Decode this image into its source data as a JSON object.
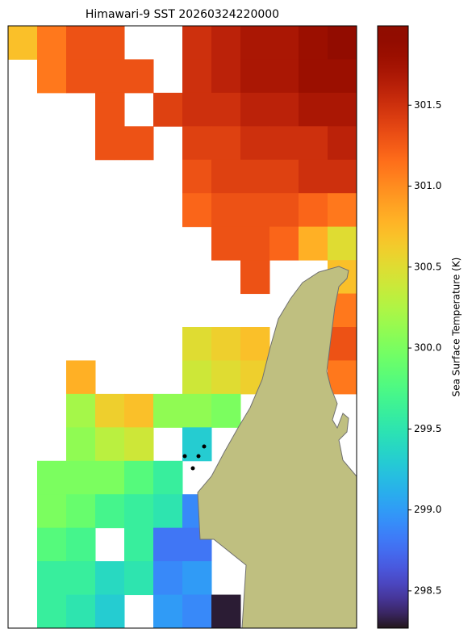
{
  "chart_data": {
    "type": "heatmap",
    "title": "Himawari-9 SST 20260324220000",
    "colorbar_label": "Sea Surface Temperature (K)",
    "zlim": [
      298.27,
      301.99
    ],
    "zticks": [
      298.5,
      {
        "value": 299,
        "label": "299.0"
      },
      299.5,
      {
        "value": 300,
        "label": "300.0"
      },
      300.5,
      {
        "value": 301,
        "label": "301.0"
      },
      301.5
    ],
    "colormap": "turbo",
    "values": [
      [
        300.7,
        301.1,
        301.3,
        301.3,
        null,
        null,
        301.5,
        301.6,
        301.7,
        301.7,
        301.8,
        301.9
      ],
      [
        null,
        301.1,
        301.3,
        301.3,
        301.3,
        null,
        301.5,
        301.6,
        301.7,
        301.7,
        301.8,
        301.8
      ],
      [
        null,
        null,
        null,
        301.3,
        null,
        301.4,
        301.5,
        301.5,
        301.6,
        301.6,
        301.7,
        301.7
      ],
      [
        null,
        null,
        null,
        301.3,
        301.3,
        null,
        301.4,
        301.4,
        301.5,
        301.5,
        301.5,
        301.6
      ],
      [
        null,
        null,
        null,
        null,
        null,
        null,
        301.3,
        301.4,
        301.4,
        301.4,
        301.5,
        301.5
      ],
      [
        null,
        null,
        null,
        null,
        null,
        null,
        301.2,
        301.3,
        301.3,
        301.3,
        301.2,
        301.1
      ],
      [
        null,
        null,
        null,
        null,
        null,
        null,
        null,
        301.3,
        301.3,
        301.2,
        300.8,
        300.5
      ],
      [
        null,
        null,
        null,
        null,
        null,
        null,
        null,
        null,
        301.3,
        null,
        null,
        300.7
      ],
      [
        null,
        null,
        null,
        null,
        null,
        null,
        null,
        null,
        null,
        null,
        null,
        301.1
      ],
      [
        null,
        null,
        null,
        null,
        null,
        null,
        300.5,
        300.6,
        300.7,
        null,
        null,
        301.3
      ],
      [
        null,
        null,
        300.8,
        null,
        null,
        null,
        300.4,
        300.5,
        300.6,
        null,
        null,
        301.1
      ],
      [
        null,
        null,
        300.2,
        300.6,
        300.7,
        300.1,
        300.1,
        300.0,
        null,
        null,
        null,
        null
      ],
      [
        null,
        null,
        300.1,
        300.3,
        300.4,
        null,
        299.3,
        null,
        null,
        null,
        null,
        null
      ],
      [
        null,
        300.0,
        300.0,
        300.0,
        299.8,
        299.6,
        null,
        null,
        null,
        null,
        null,
        null
      ],
      [
        null,
        300.0,
        299.9,
        299.7,
        299.6,
        299.5,
        298.9,
        null,
        null,
        null,
        null,
        null
      ],
      [
        null,
        299.8,
        299.7,
        null,
        299.6,
        298.8,
        298.8,
        null,
        null,
        null,
        null,
        null
      ],
      [
        null,
        299.6,
        299.6,
        299.4,
        299.5,
        298.9,
        299.0,
        null,
        null,
        null,
        null,
        null
      ],
      [
        null,
        299.6,
        299.5,
        299.3,
        null,
        299.0,
        298.9,
        298.3,
        null,
        null,
        null,
        null
      ]
    ]
  }
}
